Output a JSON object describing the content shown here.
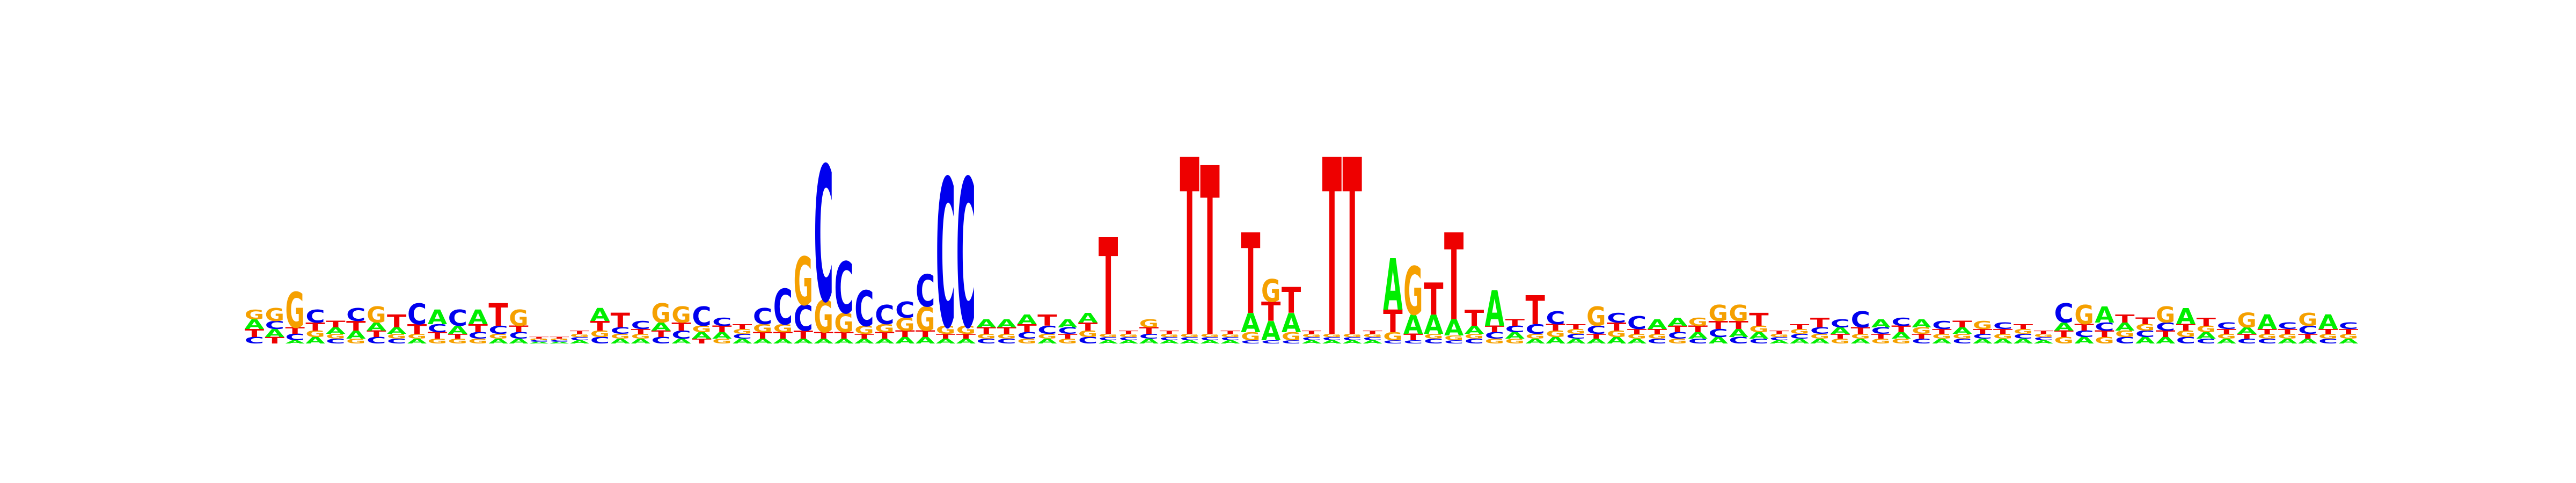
{
  "chart_data": {
    "type": "sequence_logo",
    "title": "",
    "xlabel": "",
    "ylabel": "",
    "ylim": [
      0,
      2
    ],
    "axes_visible": false,
    "grid": false,
    "legend": "none",
    "alphabet": [
      "A",
      "C",
      "G",
      "T"
    ],
    "colors": {
      "A": "#00ee00",
      "C": "#0000ee",
      "G": "#f5a000",
      "T": "#ee0000"
    },
    "background_color": "#ffffff",
    "positions": [
      {
        "A": 0.06,
        "C": 0.04,
        "G": 0.06,
        "T": 0.05
      },
      {
        "A": 0.05,
        "C": 0.05,
        "G": 0.08,
        "T": 0.04
      },
      {
        "A": 0.02,
        "C": 0.04,
        "G": 0.22,
        "T": 0.04
      },
      {
        "A": 0.04,
        "C": 0.08,
        "G": 0.04,
        "T": 0.05
      },
      {
        "A": 0.04,
        "C": 0.03,
        "G": 0.03,
        "T": 0.04
      },
      {
        "A": 0.05,
        "C": 0.08,
        "G": 0.03,
        "T": 0.06
      },
      {
        "A": 0.05,
        "C": 0.04,
        "G": 0.1,
        "T": 0.04
      },
      {
        "A": 0.04,
        "C": 0.03,
        "G": 0.03,
        "T": 0.08
      },
      {
        "A": 0.03,
        "C": 0.13,
        "G": 0.03,
        "T": 0.06
      },
      {
        "A": 0.09,
        "C": 0.05,
        "G": 0.03,
        "T": 0.04
      },
      {
        "A": 0.05,
        "C": 0.1,
        "G": 0.03,
        "T": 0.03
      },
      {
        "A": 0.09,
        "C": 0.04,
        "G": 0.03,
        "T": 0.05
      },
      {
        "A": 0.03,
        "C": 0.05,
        "G": 0.03,
        "T": 0.14
      },
      {
        "A": 0.03,
        "C": 0.04,
        "G": 0.1,
        "T": 0.04
      },
      {
        "A": 0.01,
        "C": 0.01,
        "G": 0.01,
        "T": 0.01
      },
      {
        "A": 0.01,
        "C": 0.01,
        "G": 0.01,
        "T": 0.01
      },
      {
        "A": 0.02,
        "C": 0.02,
        "G": 0.02,
        "T": 0.02
      },
      {
        "A": 0.08,
        "C": 0.04,
        "G": 0.04,
        "T": 0.06
      },
      {
        "A": 0.03,
        "C": 0.04,
        "G": 0.03,
        "T": 0.09
      },
      {
        "A": 0.03,
        "C": 0.05,
        "G": 0.03,
        "T": 0.03
      },
      {
        "A": 0.05,
        "C": 0.04,
        "G": 0.12,
        "T": 0.04
      },
      {
        "A": 0.03,
        "C": 0.05,
        "G": 0.1,
        "T": 0.05
      },
      {
        "A": 0.04,
        "C": 0.12,
        "G": 0.04,
        "T": 0.03
      },
      {
        "A": 0.04,
        "C": 0.05,
        "G": 0.03,
        "T": 0.04
      },
      {
        "A": 0.03,
        "C": 0.03,
        "G": 0.03,
        "T": 0.03
      },
      {
        "A": 0.03,
        "C": 0.1,
        "G": 0.05,
        "T": 0.04
      },
      {
        "A": 0.03,
        "C": 0.22,
        "G": 0.05,
        "T": 0.04
      },
      {
        "A": 0.03,
        "C": 0.16,
        "G": 0.3,
        "T": 0.05
      },
      {
        "A": 0.03,
        "C": 0.84,
        "G": 0.2,
        "T": 0.04
      },
      {
        "A": 0.03,
        "C": 0.32,
        "G": 0.12,
        "T": 0.04
      },
      {
        "A": 0.03,
        "C": 0.22,
        "G": 0.05,
        "T": 0.03
      },
      {
        "A": 0.03,
        "C": 0.12,
        "G": 0.05,
        "T": 0.04
      },
      {
        "A": 0.04,
        "C": 0.1,
        "G": 0.08,
        "T": 0.04
      },
      {
        "A": 0.04,
        "C": 0.2,
        "G": 0.15,
        "T": 0.04
      },
      {
        "A": 0.03,
        "C": 0.92,
        "G": 0.05,
        "T": 0.03
      },
      {
        "A": 0.03,
        "C": 0.92,
        "G": 0.05,
        "T": 0.03
      },
      {
        "A": 0.05,
        "C": 0.03,
        "G": 0.03,
        "T": 0.04
      },
      {
        "A": 0.05,
        "C": 0.03,
        "G": 0.03,
        "T": 0.04
      },
      {
        "A": 0.06,
        "C": 0.04,
        "G": 0.03,
        "T": 0.05
      },
      {
        "A": 0.03,
        "C": 0.05,
        "G": 0.03,
        "T": 0.07
      },
      {
        "A": 0.05,
        "C": 0.04,
        "G": 0.03,
        "T": 0.03
      },
      {
        "A": 0.06,
        "C": 0.04,
        "G": 0.04,
        "T": 0.05
      },
      {
        "A": 0.02,
        "C": 0.02,
        "G": 0.02,
        "T": 0.6
      },
      {
        "A": 0.02,
        "C": 0.02,
        "G": 0.02,
        "T": 0.02
      },
      {
        "A": 0.03,
        "C": 0.03,
        "G": 0.05,
        "T": 0.04
      },
      {
        "A": 0.02,
        "C": 0.02,
        "G": 0.02,
        "T": 0.02
      },
      {
        "A": 0.02,
        "C": 0.02,
        "G": 0.02,
        "T": 1.1
      },
      {
        "A": 0.02,
        "C": 0.02,
        "G": 0.02,
        "T": 1.05
      },
      {
        "A": 0.02,
        "C": 0.02,
        "G": 0.02,
        "T": 0.02
      },
      {
        "A": 0.12,
        "C": 0.02,
        "G": 0.05,
        "T": 0.5
      },
      {
        "A": 0.12,
        "C": 0.02,
        "G": 0.14,
        "T": 0.12
      },
      {
        "A": 0.12,
        "C": 0.02,
        "G": 0.05,
        "T": 0.16
      },
      {
        "A": 0.02,
        "C": 0.02,
        "G": 0.02,
        "T": 0.02
      },
      {
        "A": 0.02,
        "C": 0.02,
        "G": 0.02,
        "T": 1.1
      },
      {
        "A": 0.02,
        "C": 0.02,
        "G": 0.02,
        "T": 1.1
      },
      {
        "A": 0.02,
        "C": 0.02,
        "G": 0.02,
        "T": 0.02
      },
      {
        "A": 0.32,
        "C": 0.02,
        "G": 0.05,
        "T": 0.14
      },
      {
        "A": 0.12,
        "C": 0.02,
        "G": 0.3,
        "T": 0.04
      },
      {
        "A": 0.12,
        "C": 0.03,
        "G": 0.03,
        "T": 0.2
      },
      {
        "A": 0.1,
        "C": 0.02,
        "G": 0.03,
        "T": 0.54
      },
      {
        "A": 0.05,
        "C": 0.03,
        "G": 0.03,
        "T": 0.1
      },
      {
        "A": 0.22,
        "C": 0.04,
        "G": 0.03,
        "T": 0.04
      },
      {
        "A": 0.04,
        "C": 0.04,
        "G": 0.03,
        "T": 0.04
      },
      {
        "A": 0.03,
        "C": 0.06,
        "G": 0.03,
        "T": 0.18
      },
      {
        "A": 0.04,
        "C": 0.08,
        "G": 0.04,
        "T": 0.04
      },
      {
        "A": 0.03,
        "C": 0.03,
        "G": 0.03,
        "T": 0.03
      },
      {
        "A": 0.03,
        "C": 0.05,
        "G": 0.12,
        "T": 0.03
      },
      {
        "A": 0.04,
        "C": 0.06,
        "G": 0.04,
        "T": 0.05
      },
      {
        "A": 0.03,
        "C": 0.08,
        "G": 0.03,
        "T": 0.03
      },
      {
        "A": 0.06,
        "C": 0.03,
        "G": 0.03,
        "T": 0.03
      },
      {
        "A": 0.05,
        "C": 0.04,
        "G": 0.03,
        "T": 0.04
      },
      {
        "A": 0.04,
        "C": 0.03,
        "G": 0.05,
        "T": 0.04
      },
      {
        "A": 0.04,
        "C": 0.05,
        "G": 0.1,
        "T": 0.05
      },
      {
        "A": 0.05,
        "C": 0.04,
        "G": 0.1,
        "T": 0.05
      },
      {
        "A": 0.04,
        "C": 0.03,
        "G": 0.04,
        "T": 0.08
      },
      {
        "A": 0.02,
        "C": 0.02,
        "G": 0.02,
        "T": 0.02
      },
      {
        "A": 0.03,
        "C": 0.03,
        "G": 0.03,
        "T": 0.03
      },
      {
        "A": 0.03,
        "C": 0.04,
        "G": 0.03,
        "T": 0.06
      },
      {
        "A": 0.04,
        "C": 0.05,
        "G": 0.03,
        "T": 0.03
      },
      {
        "A": 0.03,
        "C": 0.1,
        "G": 0.03,
        "T": 0.04
      },
      {
        "A": 0.05,
        "C": 0.04,
        "G": 0.03,
        "T": 0.03
      },
      {
        "A": 0.04,
        "C": 0.05,
        "G": 0.03,
        "T": 0.04
      },
      {
        "A": 0.05,
        "C": 0.03,
        "G": 0.04,
        "T": 0.03
      },
      {
        "A": 0.03,
        "C": 0.05,
        "G": 0.03,
        "T": 0.03
      },
      {
        "A": 0.04,
        "C": 0.03,
        "G": 0.03,
        "T": 0.04
      },
      {
        "A": 0.03,
        "C": 0.03,
        "G": 0.05,
        "T": 0.03
      },
      {
        "A": 0.03,
        "C": 0.04,
        "G": 0.03,
        "T": 0.03
      },
      {
        "A": 0.03,
        "C": 0.03,
        "G": 0.03,
        "T": 0.03
      },
      {
        "A": 0.02,
        "C": 0.02,
        "G": 0.02,
        "T": 0.02
      },
      {
        "A": 0.05,
        "C": 0.12,
        "G": 0.04,
        "T": 0.04
      },
      {
        "A": 0.04,
        "C": 0.04,
        "G": 0.12,
        "T": 0.04
      },
      {
        "A": 0.1,
        "C": 0.05,
        "G": 0.04,
        "T": 0.04
      },
      {
        "A": 0.05,
        "C": 0.04,
        "G": 0.04,
        "T": 0.05
      },
      {
        "A": 0.04,
        "C": 0.04,
        "G": 0.04,
        "T": 0.04
      },
      {
        "A": 0.04,
        "C": 0.05,
        "G": 0.1,
        "T": 0.04
      },
      {
        "A": 0.1,
        "C": 0.04,
        "G": 0.04,
        "T": 0.04
      },
      {
        "A": 0.04,
        "C": 0.03,
        "G": 0.04,
        "T": 0.05
      },
      {
        "A": 0.03,
        "C": 0.04,
        "G": 0.03,
        "T": 0.03
      },
      {
        "A": 0.04,
        "C": 0.03,
        "G": 0.09,
        "T": 0.03
      },
      {
        "A": 0.09,
        "C": 0.03,
        "G": 0.03,
        "T": 0.03
      },
      {
        "A": 0.03,
        "C": 0.04,
        "G": 0.03,
        "T": 0.03
      },
      {
        "A": 0.03,
        "C": 0.05,
        "G": 0.08,
        "T": 0.03
      },
      {
        "A": 0.09,
        "C": 0.03,
        "G": 0.03,
        "T": 0.03
      },
      {
        "A": 0.03,
        "C": 0.04,
        "G": 0.03,
        "T": 0.03
      }
    ]
  }
}
